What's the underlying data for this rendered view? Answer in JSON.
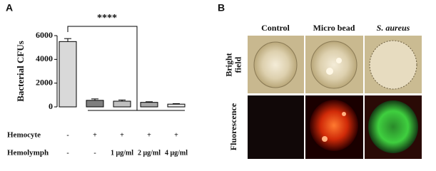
{
  "panel_labels": [
    "A",
    "B"
  ],
  "chart_data": {
    "type": "bar",
    "ylabel": "Bacterial CFUs",
    "categories": [
      null,
      null,
      null,
      null,
      null
    ],
    "values": [
      5500,
      550,
      480,
      380,
      230
    ],
    "errors": [
      250,
      120,
      100,
      50,
      40
    ],
    "colors": [
      "#d9d9d9",
      "#7f7f7f",
      "#bfbfbf",
      "#a6a6a6",
      "#e8e8e8"
    ],
    "ylim": [
      0,
      6000
    ],
    "yticks": [
      0,
      2000,
      4000,
      6000
    ],
    "annotations": [
      "****"
    ],
    "condition_rows": [
      {
        "name": "Hemocyte",
        "values": [
          "-",
          "+",
          "+",
          "+",
          "+"
        ]
      },
      {
        "name": "Hemolymph",
        "values": [
          "-",
          "-",
          "1 μg/ml",
          "2 μg/ml",
          "4 μg/ml"
        ]
      }
    ]
  },
  "panel_b": {
    "columns": [
      "Control",
      "Micro bead",
      "S. aureus"
    ],
    "rows": [
      {
        "lines": [
          "Bright",
          "field"
        ]
      },
      {
        "lines": [
          "Fluorescence"
        ]
      }
    ]
  }
}
